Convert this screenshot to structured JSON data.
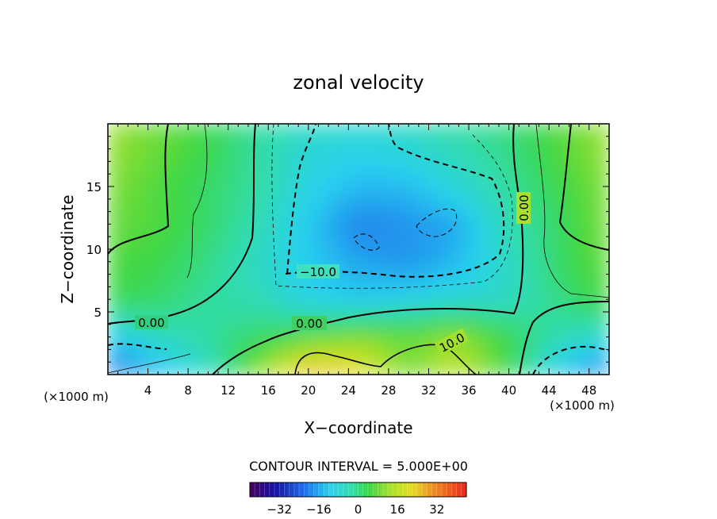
{
  "chart_data": {
    "type": "heatmap",
    "title": "zonal velocity",
    "xlabel": "X−coordinate",
    "ylabel": "Z−coordinate",
    "x_unit_left": "(×1000 m)",
    "x_unit_right": "(×1000 m)",
    "xlim": [
      0,
      50
    ],
    "ylim": [
      0,
      20
    ],
    "xticks": [
      4,
      8,
      12,
      16,
      20,
      24,
      28,
      32,
      36,
      40,
      44,
      48
    ],
    "yticks": [
      5,
      10,
      15
    ],
    "grid": false,
    "contour_interval_label": "CONTOUR INTERVAL = 5.000E+00",
    "colorbar": {
      "min": -44,
      "max": 44,
      "tick_values": [
        -32,
        -16,
        0,
        16,
        32
      ],
      "tick_labels": [
        "−32",
        "−16",
        "0",
        "16",
        "32"
      ]
    },
    "contour_labels": [
      {
        "text": "0.00",
        "x": 4.5,
        "z": 4.2
      },
      {
        "text": "0.00",
        "x": 20.5,
        "z": 4.0
      },
      {
        "text": "−10.0",
        "x": 19.0,
        "z": 8.2
      },
      {
        "text": "10.0",
        "x": 34.0,
        "z": 2.5
      },
      {
        "text": "0.00",
        "x": 41.3,
        "z": 13.5
      }
    ],
    "field_samples": {
      "x": [
        0,
        5,
        10,
        15,
        20,
        25,
        30,
        35,
        40,
        45,
        50
      ],
      "z": [
        0.5,
        3,
        6,
        9,
        12,
        15,
        18,
        19.8
      ],
      "values_ms": [
        [
          -22,
          -14,
          -6,
          10,
          26,
          22,
          8,
          16,
          4,
          -12,
          -20
        ],
        [
          -12,
          -6,
          -2,
          2,
          6,
          10,
          8,
          12,
          4,
          -4,
          -8
        ],
        [
          4,
          2,
          -2,
          -4,
          -10,
          -12,
          -10,
          -8,
          -6,
          0,
          6
        ],
        [
          6,
          4,
          0,
          -6,
          -12,
          -16,
          -18,
          -14,
          -6,
          2,
          8
        ],
        [
          8,
          6,
          2,
          -4,
          -12,
          -20,
          -18,
          -16,
          -4,
          2,
          10
        ],
        [
          10,
          6,
          2,
          -2,
          -10,
          -14,
          -14,
          -8,
          -2,
          4,
          10
        ],
        [
          12,
          8,
          4,
          -2,
          -8,
          -10,
          -8,
          -4,
          0,
          6,
          12
        ],
        [
          12,
          8,
          4,
          -2,
          -6,
          -8,
          -6,
          -2,
          0,
          6,
          12
        ]
      ]
    }
  }
}
